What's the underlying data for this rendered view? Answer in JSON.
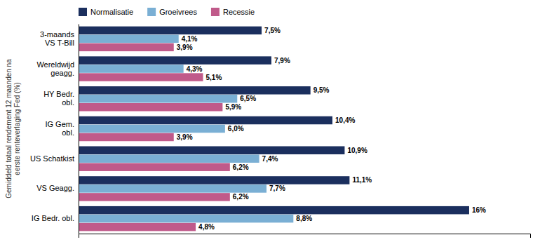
{
  "chart_data": {
    "type": "bar",
    "orientation": "horizontal",
    "categories": [
      "3-maands\nVS T-Bill",
      "Wereldwijd\ngeagg.",
      "HY Bedr.\nobl.",
      "IG Gem.\nobl.",
      "US Schatkist",
      "VS Geagg.",
      "IG Bedr. obl."
    ],
    "series": [
      {
        "name": "Normalisatie",
        "color": "#1b2f5e",
        "values": [
          7.5,
          7.9,
          9.5,
          10.4,
          10.9,
          11.1,
          16.0
        ],
        "value_labels": [
          "7,5%",
          "7,9%",
          "9,5%",
          "10,4%",
          "10,9%",
          "11,1%",
          "16%"
        ]
      },
      {
        "name": "Groeivrees",
        "color": "#7aafd4",
        "values": [
          4.1,
          4.3,
          6.5,
          6.0,
          7.4,
          7.7,
          8.8
        ],
        "value_labels": [
          "4,1%",
          "4,3%",
          "6,5%",
          "6,0%",
          "7,4%",
          "7,7%",
          "8,8%"
        ]
      },
      {
        "name": "Recessie",
        "color": "#c05a8a",
        "values": [
          3.9,
          5.1,
          5.9,
          3.9,
          6.2,
          6.2,
          4.8
        ],
        "value_labels": [
          "3,9%",
          "5,1%",
          "5,9%",
          "3,9%",
          "6,2%",
          "6,2%",
          "4,8%"
        ]
      }
    ],
    "ylabel": "Gemiddeld totaal rendement 12 maanden na\neerste renteverlaging Fed (%)",
    "xlim": [
      0,
      18.5
    ],
    "tick_labels": "y",
    "data_labels": true,
    "legend": "upper left",
    "grid": false
  }
}
